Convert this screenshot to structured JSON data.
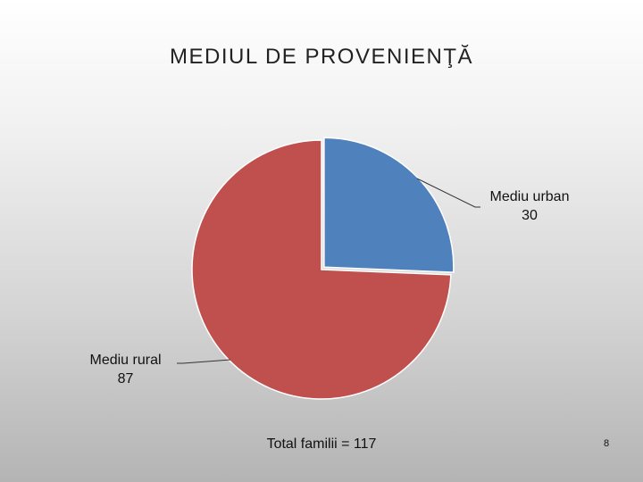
{
  "slide": {
    "title": "MEDIUL DE PROVENIENŢĂ",
    "total_text": "Total familii = 117",
    "page_number": "8"
  },
  "chart_data": {
    "type": "pie",
    "title": "MEDIUL DE PROVENIENŢĂ",
    "slices": [
      {
        "label": "Mediu urban",
        "value": 30,
        "value_label": "30",
        "color": "#4F81BD",
        "label_position": "right"
      },
      {
        "label": "Mediu rural",
        "value": 87,
        "value_label": "87",
        "color": "#C0504D",
        "label_position": "left"
      }
    ],
    "total": 117,
    "legend": false
  }
}
